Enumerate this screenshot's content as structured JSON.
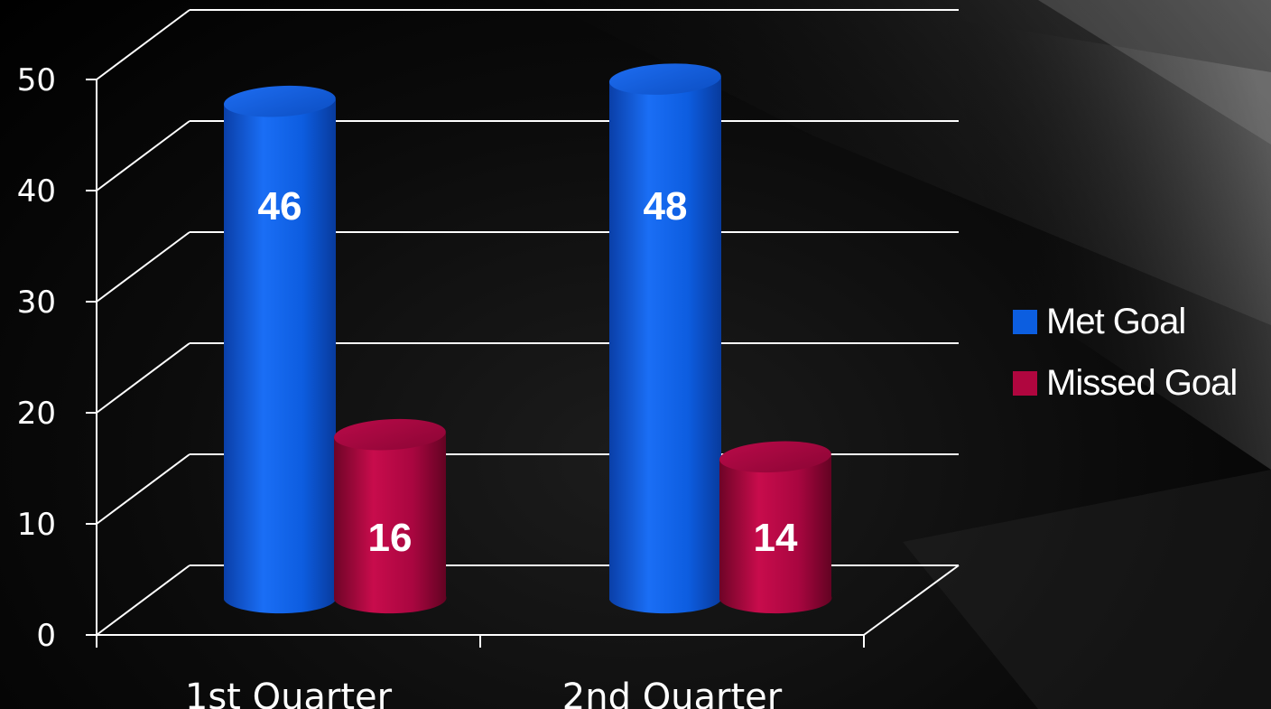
{
  "chart_data": {
    "type": "bar",
    "categories": [
      "1st Quarter",
      "2nd Quarter"
    ],
    "series": [
      {
        "name": "Met Goal",
        "values": [
          46,
          48
        ],
        "color": "#0c5ee0"
      },
      {
        "name": "Missed Goal",
        "values": [
          16,
          14
        ],
        "color": "#b0063f"
      }
    ],
    "ylim": [
      0,
      50
    ],
    "yticks": [
      "0",
      "10",
      "20",
      "30",
      "40",
      "50"
    ],
    "grid": true,
    "legend_position": "right"
  },
  "legend": {
    "items": [
      {
        "label": "Met Goal",
        "color": "#0c5ee0"
      },
      {
        "label": "Missed Goal",
        "color": "#b0063f"
      }
    ]
  }
}
